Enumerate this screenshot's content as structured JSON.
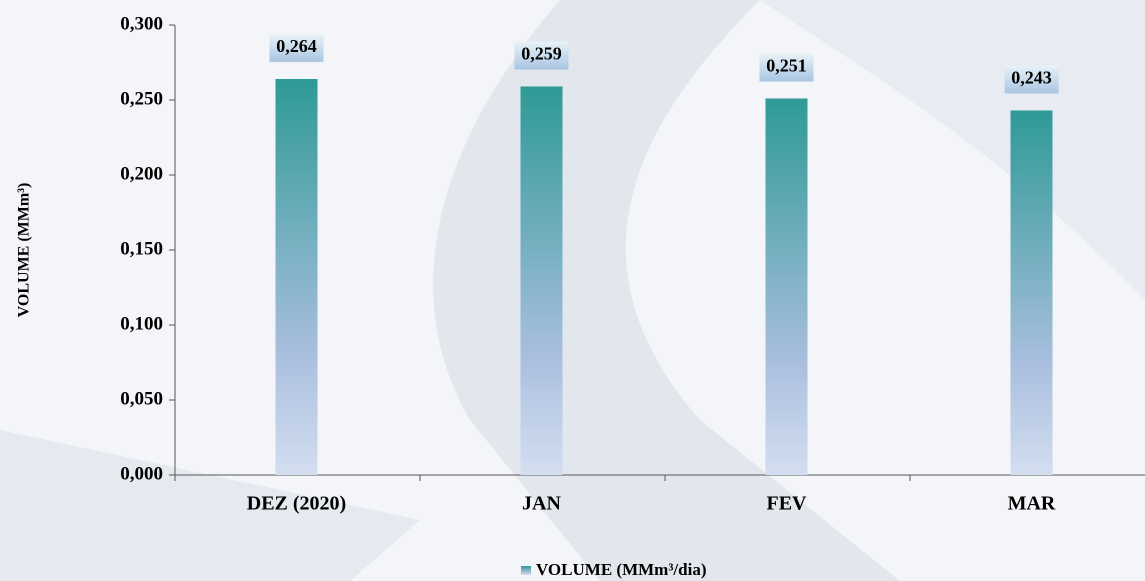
{
  "chart_data": {
    "type": "bar",
    "y_label": "VOLUME (MMm³)",
    "categories": [
      "DEZ (2020)",
      "JAN",
      "FEV",
      "MAR"
    ],
    "series": [
      {
        "name": "VOLUME (MMm³/dia)",
        "color": "#2e9a96",
        "values": [
          0.264,
          0.259,
          0.251,
          0.243
        ],
        "value_labels": [
          "0,264",
          "0,259",
          "0,251",
          "0,243"
        ]
      }
    ],
    "ylim": [
      0,
      0.3
    ],
    "yticks": [
      {
        "value": 0,
        "label": "0,000"
      },
      {
        "value": 0.05,
        "label": "0,050"
      },
      {
        "value": 0.1,
        "label": "0,100"
      },
      {
        "value": 0.15,
        "label": "0,150"
      },
      {
        "value": 0.2,
        "label": "0,200"
      },
      {
        "value": 0.25,
        "label": "0,250"
      },
      {
        "value": 0.3,
        "label": "0,300"
      }
    ],
    "grid": false,
    "legend": "bottom"
  }
}
